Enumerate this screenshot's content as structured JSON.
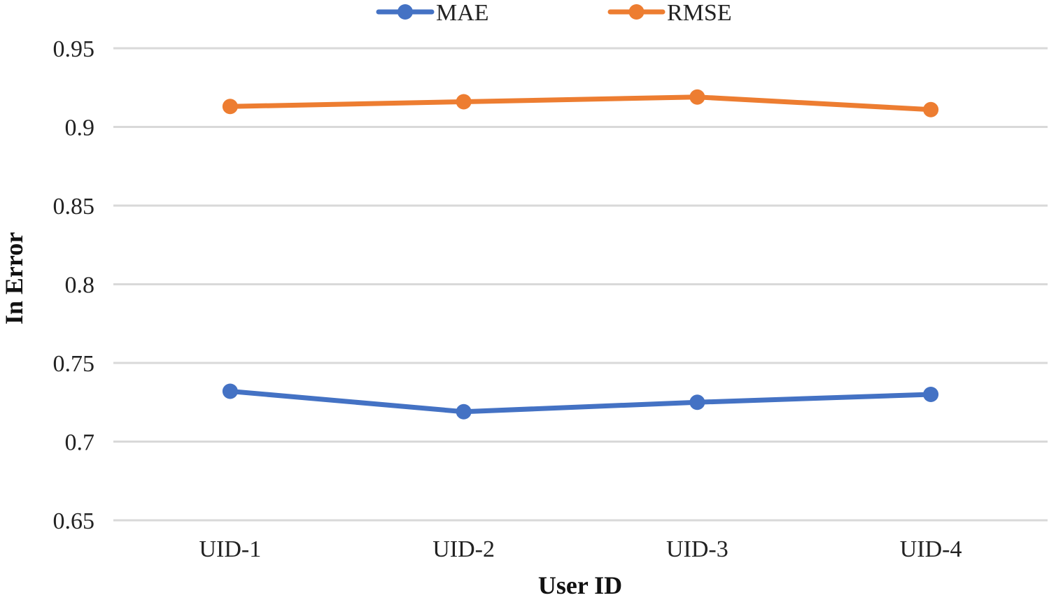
{
  "chart_data": {
    "type": "line",
    "title": "",
    "xlabel": "User ID",
    "ylabel": "In Error",
    "categories": [
      "UID-1",
      "UID-2",
      "UID-3",
      "UID-4"
    ],
    "ylim": [
      0.65,
      0.95
    ],
    "yticks": [
      0.65,
      0.7,
      0.75,
      0.8,
      0.85,
      0.9,
      0.95
    ],
    "ytick_labels": [
      "0.65",
      "0.7",
      "0.75",
      "0.8",
      "0.85",
      "0.9",
      "0.95"
    ],
    "grid": true,
    "legend_position": "top-center",
    "series": [
      {
        "name": "MAE",
        "color": "#4472c4",
        "values": [
          0.732,
          0.719,
          0.725,
          0.73
        ]
      },
      {
        "name": "RMSE",
        "color": "#ed7d31",
        "values": [
          0.913,
          0.916,
          0.919,
          0.911
        ]
      }
    ]
  }
}
